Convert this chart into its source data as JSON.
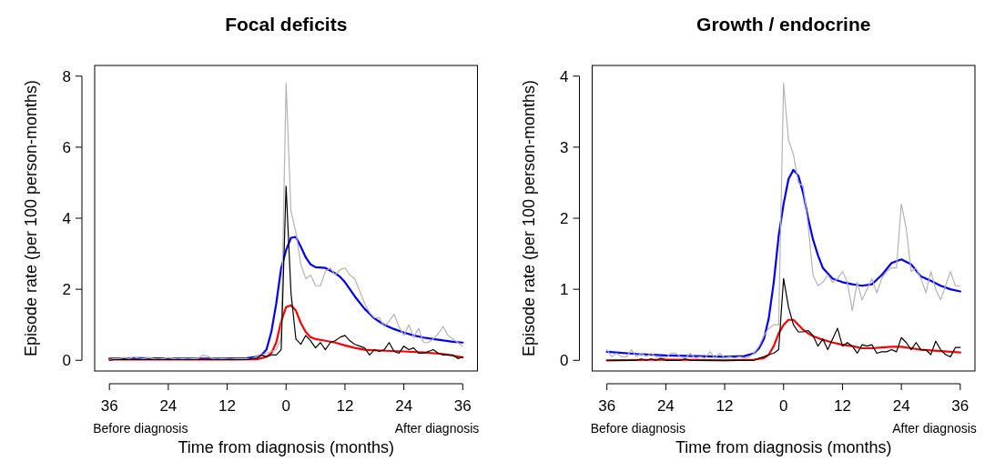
{
  "chart_data": [
    {
      "type": "line",
      "title": "Focal deficits",
      "xlabel": "Time from diagnosis (months)",
      "ylabel": "Episode rate (per 100 person-months)",
      "annotations": [
        "Before diagnosis",
        "After diagnosis"
      ],
      "x": [
        -36,
        -35,
        -34,
        -33,
        -32,
        -31,
        -30,
        -29,
        -28,
        -27,
        -26,
        -25,
        -24,
        -23,
        -22,
        -21,
        -20,
        -19,
        -18,
        -17,
        -16,
        -15,
        -14,
        -13,
        -12,
        -11,
        -10,
        -9,
        -8,
        -7,
        -6,
        -5,
        -4,
        -3,
        -2,
        -1,
        0,
        1,
        2,
        3,
        4,
        5,
        6,
        7,
        8,
        9,
        10,
        11,
        12,
        13,
        14,
        15,
        16,
        17,
        18,
        19,
        20,
        21,
        22,
        23,
        24,
        25,
        26,
        27,
        28,
        29,
        30,
        31,
        32,
        33,
        34,
        35,
        36
      ],
      "xlim": [
        -39,
        39
      ],
      "ylim": [
        -0.3,
        8.3
      ],
      "xticks": [
        {
          "value": -36,
          "label": "36"
        },
        {
          "value": -24,
          "label": "24"
        },
        {
          "value": -12,
          "label": "12"
        },
        0,
        12,
        24,
        36
      ],
      "yticks": [
        0,
        2,
        4,
        6,
        8
      ],
      "grid": false,
      "series": [
        {
          "color": "#b4b4b4",
          "values": [
            0.02,
            0.05,
            0.05,
            0.08,
            0.05,
            0.1,
            0.05,
            0.05,
            0.08,
            0.05,
            0.03,
            0.05,
            0.08,
            0.05,
            0.03,
            0.05,
            0.03,
            0.05,
            0.05,
            0.15,
            0.12,
            0.05,
            0.03,
            0.05,
            0.03,
            0.03,
            0.05,
            0.05,
            0.05,
            0.05,
            0.1,
            0.15,
            0.2,
            0.25,
            0.3,
            0.6,
            7.8,
            4.2,
            3.6,
            2.7,
            2.3,
            2.4,
            2.1,
            2.1,
            2.5,
            2.6,
            2.4,
            2.55,
            2.6,
            2.4,
            2.3,
            1.95,
            1.6,
            1.35,
            1.2,
            1.2,
            0.95,
            1.1,
            1.3,
            0.95,
            0.7,
            1.0,
            0.65,
            0.9,
            0.5,
            0.5,
            0.6,
            0.75,
            0.95,
            0.7,
            0.6,
            0.5,
            0.4
          ]
        },
        {
          "color": "#000000",
          "values": [
            0,
            0.02,
            0.02,
            0.03,
            0.02,
            0.02,
            0.03,
            0.02,
            0.02,
            0.02,
            0.02,
            0.02,
            0.02,
            0.02,
            0.02,
            0.02,
            0.02,
            0.02,
            0.02,
            0.02,
            0.02,
            0.02,
            0.02,
            0.02,
            0.02,
            0.02,
            0.02,
            0.02,
            0.02,
            0.05,
            0.05,
            0.15,
            0.1,
            0.15,
            0.15,
            0.3,
            4.9,
            1.9,
            0.6,
            0.45,
            0.7,
            0.55,
            0.35,
            0.5,
            0.3,
            0.5,
            0.55,
            0.65,
            0.7,
            0.55,
            0.45,
            0.4,
            0.35,
            0.15,
            0.3,
            0.25,
            0.3,
            0.5,
            0.25,
            0.2,
            0.4,
            0.3,
            0.35,
            0.2,
            0.2,
            0.25,
            0.3,
            0.2,
            0.15,
            0.15,
            0.15,
            0.05,
            0.1
          ]
        },
        {
          "color": "#0000ff",
          "x": [
            -36,
            -30,
            -24,
            -18,
            -12,
            -8,
            -6,
            -5,
            -4,
            -3,
            -2,
            -1,
            0,
            1,
            2,
            3,
            4,
            5,
            6,
            8,
            10,
            11,
            12,
            14,
            16,
            18,
            20,
            22,
            24,
            26,
            28,
            30,
            32,
            34,
            36
          ],
          "values": [
            0.05,
            0.06,
            0.05,
            0.05,
            0.05,
            0.06,
            0.1,
            0.15,
            0.3,
            0.8,
            1.6,
            2.6,
            3.1,
            3.45,
            3.47,
            3.2,
            2.9,
            2.7,
            2.62,
            2.6,
            2.45,
            2.35,
            2.2,
            1.8,
            1.45,
            1.18,
            1.0,
            0.88,
            0.78,
            0.7,
            0.64,
            0.6,
            0.56,
            0.52,
            0.5
          ]
        },
        {
          "color": "#ff0000",
          "x": [
            -36,
            -24,
            -12,
            -6,
            -5,
            -4,
            -3,
            -2,
            -1,
            0,
            1,
            2,
            3,
            4,
            5,
            6,
            8,
            10,
            12,
            14,
            16,
            20,
            24,
            28,
            32,
            36
          ],
          "values": [
            0.02,
            0.02,
            0.02,
            0.03,
            0.06,
            0.1,
            0.2,
            0.5,
            1.1,
            1.5,
            1.55,
            1.4,
            1.05,
            0.8,
            0.65,
            0.6,
            0.55,
            0.5,
            0.42,
            0.35,
            0.3,
            0.27,
            0.25,
            0.22,
            0.18,
            0.08
          ]
        }
      ]
    },
    {
      "type": "line",
      "title": "Growth / endocrine",
      "xlabel": "Time from diagnosis (months)",
      "ylabel": "Episode rate (per 100 person-months)",
      "annotations": [
        "Before diagnosis",
        "After diagnosis"
      ],
      "x": [
        -36,
        -35,
        -34,
        -33,
        -32,
        -31,
        -30,
        -29,
        -28,
        -27,
        -26,
        -25,
        -24,
        -23,
        -22,
        -21,
        -20,
        -19,
        -18,
        -17,
        -16,
        -15,
        -14,
        -13,
        -12,
        -11,
        -10,
        -9,
        -8,
        -7,
        -6,
        -5,
        -4,
        -3,
        -2,
        -1,
        0,
        1,
        2,
        3,
        4,
        5,
        6,
        7,
        8,
        9,
        10,
        11,
        12,
        13,
        14,
        15,
        16,
        17,
        18,
        19,
        20,
        21,
        22,
        23,
        24,
        25,
        26,
        27,
        28,
        29,
        30,
        31,
        32,
        33,
        34,
        35,
        36
      ],
      "xlim": [
        -39,
        39
      ],
      "ylim": [
        -0.15,
        4.15
      ],
      "xticks": [
        {
          "value": -36,
          "label": "36"
        },
        {
          "value": -24,
          "label": "24"
        },
        {
          "value": -12,
          "label": "12"
        },
        0,
        12,
        24,
        36
      ],
      "yticks": [
        0,
        1,
        2,
        3,
        4
      ],
      "grid": false,
      "series": [
        {
          "color": "#b4b4b4",
          "values": [
            0.15,
            0.05,
            0.1,
            0.05,
            0.05,
            0.15,
            0.05,
            0.1,
            0.05,
            0.1,
            0.05,
            0.05,
            0.03,
            0.1,
            0.1,
            0.05,
            0.03,
            0.1,
            0.03,
            0.05,
            0.03,
            0.12,
            0.03,
            0.1,
            0.03,
            0.05,
            0.03,
            0.05,
            0.03,
            0.05,
            0.1,
            0.2,
            0.35,
            0.45,
            0.5,
            0.5,
            3.9,
            3.1,
            2.9,
            2.5,
            2.45,
            1.9,
            1.2,
            1.05,
            1.1,
            1.2,
            1.1,
            1.15,
            1.25,
            1.1,
            0.7,
            1.1,
            0.85,
            1.0,
            1.15,
            0.95,
            1.15,
            1.25,
            1.3,
            1.3,
            2.2,
            1.85,
            1.25,
            1.3,
            1.15,
            0.95,
            1.25,
            1.0,
            0.85,
            1.05,
            1.25,
            1.05,
            1.05
          ]
        },
        {
          "color": "#000000",
          "values": [
            0,
            0,
            0,
            0,
            0,
            0,
            0,
            0.02,
            0,
            0.02,
            0,
            0.03,
            0,
            0,
            0,
            0,
            0.02,
            0,
            0,
            0,
            0,
            0,
            0,
            0,
            0,
            0,
            0,
            0,
            0,
            0,
            0,
            0.03,
            0.05,
            0.08,
            0.1,
            0.15,
            1.15,
            0.75,
            0.5,
            0.4,
            0.4,
            0.42,
            0.35,
            0.2,
            0.3,
            0.15,
            0.3,
            0.45,
            0.2,
            0.25,
            0.2,
            0.1,
            0.22,
            0.2,
            0.22,
            0.1,
            0.12,
            0.12,
            0.15,
            0.12,
            0.32,
            0.25,
            0.15,
            0.25,
            0.15,
            0.15,
            0.08,
            0.27,
            0.15,
            0.08,
            0.05,
            0.18,
            0.18
          ]
        },
        {
          "color": "#0000ff",
          "x": [
            -36,
            -30,
            -24,
            -18,
            -12,
            -8,
            -6,
            -5,
            -4,
            -3,
            -2,
            -1,
            0,
            1,
            2,
            3,
            4,
            5,
            6,
            7,
            8,
            10,
            12,
            14,
            16,
            18,
            20,
            22,
            24,
            26,
            28,
            30,
            32,
            34,
            36
          ],
          "values": [
            0.12,
            0.09,
            0.07,
            0.06,
            0.05,
            0.06,
            0.1,
            0.17,
            0.3,
            0.6,
            1.1,
            1.75,
            2.2,
            2.55,
            2.68,
            2.6,
            2.35,
            2.0,
            1.7,
            1.48,
            1.3,
            1.15,
            1.1,
            1.07,
            1.05,
            1.07,
            1.2,
            1.37,
            1.42,
            1.35,
            1.18,
            1.12,
            1.05,
            1.0,
            0.97
          ]
        },
        {
          "color": "#ff0000",
          "x": [
            -36,
            -24,
            -12,
            -6,
            -4,
            -3,
            -2,
            -1,
            0,
            1,
            2,
            3,
            4,
            5,
            6,
            8,
            10,
            12,
            14,
            16,
            18,
            20,
            22,
            24,
            26,
            28,
            30,
            32,
            34,
            36
          ],
          "values": [
            0,
            0.01,
            0,
            0.01,
            0.03,
            0.08,
            0.2,
            0.38,
            0.5,
            0.57,
            0.57,
            0.5,
            0.43,
            0.38,
            0.34,
            0.29,
            0.25,
            0.22,
            0.2,
            0.17,
            0.17,
            0.18,
            0.19,
            0.19,
            0.17,
            0.15,
            0.14,
            0.13,
            0.12,
            0.11
          ]
        }
      ]
    }
  ]
}
